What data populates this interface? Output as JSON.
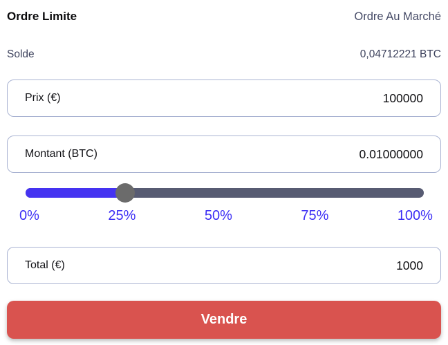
{
  "header": {
    "active_tab": "Ordre Limite",
    "inactive_tab": "Ordre Au Marché"
  },
  "balance": {
    "label": "Solde",
    "value": "0,04712221 BTC"
  },
  "fields": {
    "price": {
      "label": "Prix (€)",
      "value": "100000"
    },
    "amount": {
      "label": "Montant (BTC)",
      "value": "0.01000000"
    },
    "total": {
      "label": "Total (€)",
      "value": "1000"
    }
  },
  "slider": {
    "percent": 25,
    "labels": [
      "0%",
      "25%",
      "50%",
      "75%",
      "100%"
    ]
  },
  "submit": {
    "label": "Vendre"
  },
  "colors": {
    "accent_blue": "#4533f1",
    "track_gray": "#575b72",
    "thumb_gray": "#6b6b6b",
    "button_red": "#d9534f",
    "field_border": "#a9b3d2",
    "slate_text": "#454a66"
  }
}
